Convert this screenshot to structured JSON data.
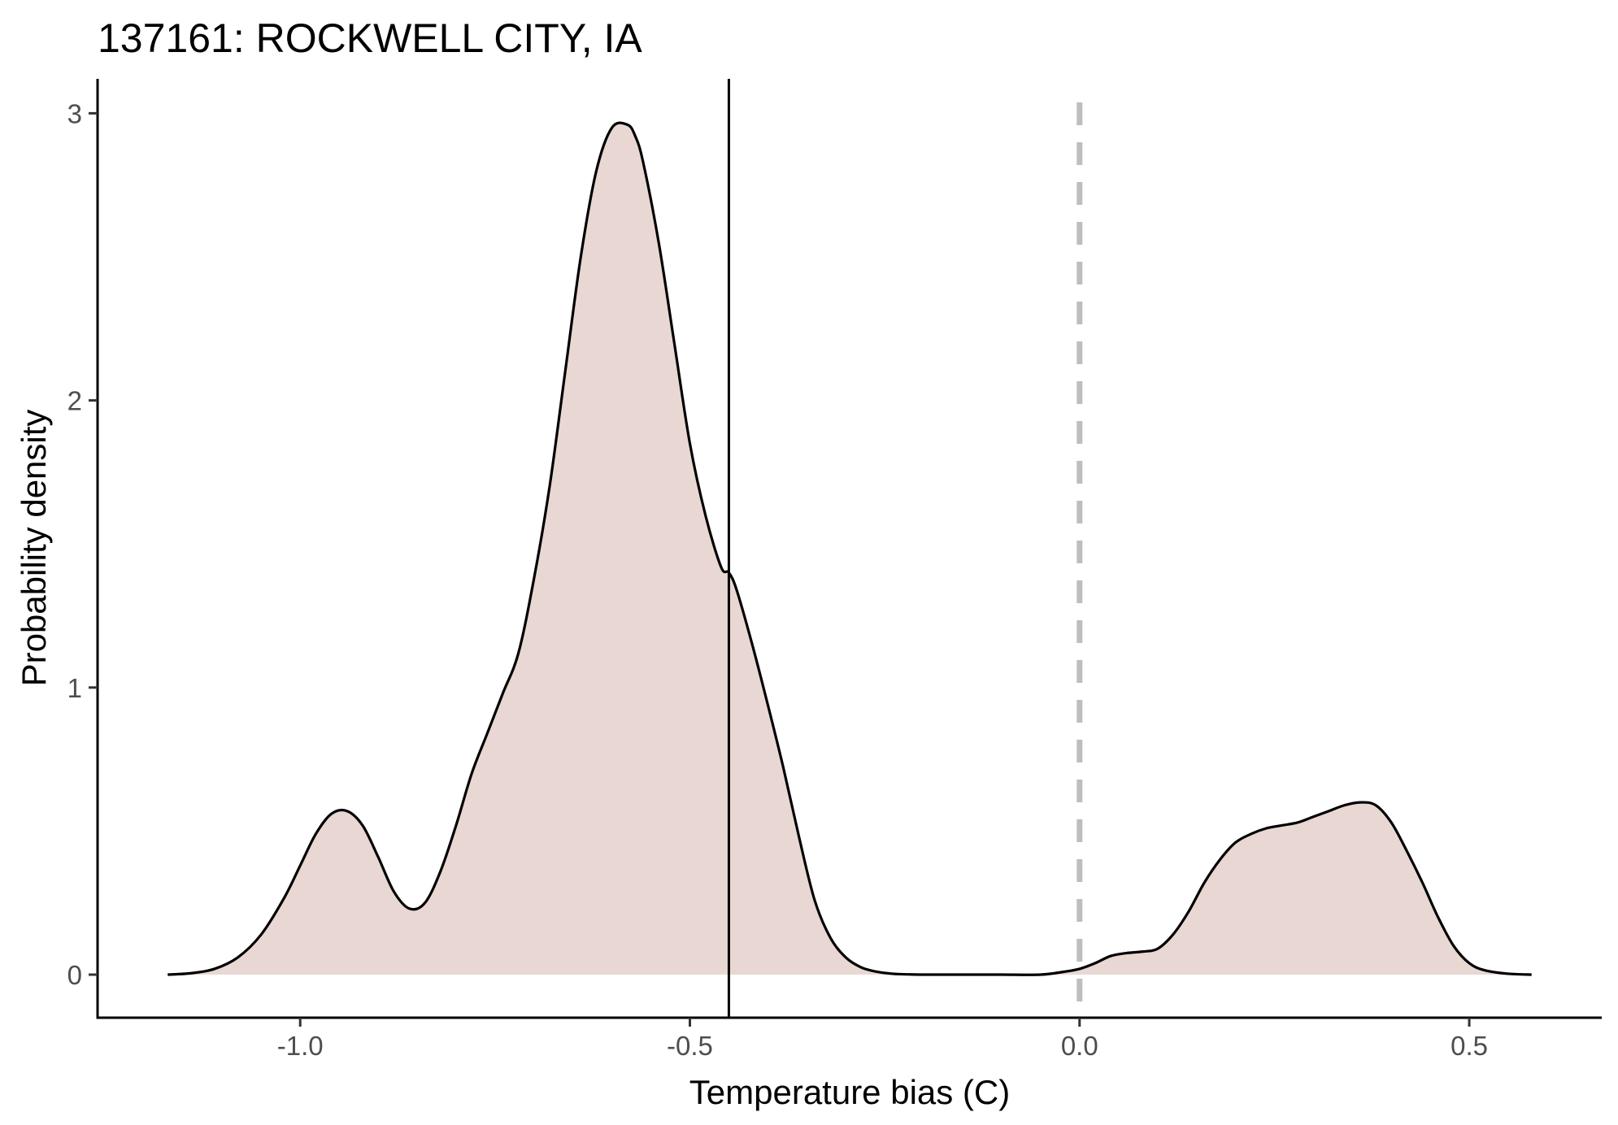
{
  "chart_data": {
    "type": "area",
    "title": "137161: ROCKWELL CITY, IA",
    "xlabel": "Temperature bias (C)",
    "ylabel": "Probability density",
    "xlim": [
      -1.26,
      0.67
    ],
    "ylim": [
      -0.15,
      3.12
    ],
    "x_ticks": [
      -1.0,
      -0.5,
      0.0,
      0.5
    ],
    "x_tick_labels": [
      "-1.0",
      "-0.5",
      "0.0",
      "0.5"
    ],
    "y_ticks": [
      0,
      1,
      2,
      3
    ],
    "y_tick_labels": [
      "0",
      "1",
      "2",
      "3"
    ],
    "grid": false,
    "legend": "none",
    "fill_color": "#e8d7d2",
    "line_color": "#000000",
    "mean_line": {
      "x": -0.45,
      "color": "#000000",
      "style": "solid"
    },
    "reference_line": {
      "x": 0.0,
      "color": "#bebebe",
      "style": "dashed"
    },
    "series": [
      {
        "x": [
          -1.17,
          -1.14,
          -1.11,
          -1.08,
          -1.05,
          -1.02,
          -1.0,
          -0.98,
          -0.96,
          -0.94,
          -0.92,
          -0.9,
          -0.88,
          -0.86,
          -0.84,
          -0.82,
          -0.8,
          -0.78,
          -0.76,
          -0.74,
          -0.72,
          -0.7,
          -0.68,
          -0.66,
          -0.64,
          -0.62,
          -0.6,
          -0.58,
          -0.57,
          -0.56,
          -0.54,
          -0.52,
          -0.5,
          -0.48,
          -0.46,
          -0.45,
          -0.44,
          -0.42,
          -0.4,
          -0.38,
          -0.36,
          -0.34,
          -0.32,
          -0.3,
          -0.28,
          -0.26,
          -0.24,
          -0.22,
          -0.2,
          -0.15,
          -0.1,
          -0.05,
          -0.02,
          0.0,
          0.02,
          0.04,
          0.06,
          0.08,
          0.1,
          0.12,
          0.14,
          0.16,
          0.18,
          0.2,
          0.22,
          0.24,
          0.26,
          0.28,
          0.3,
          0.32,
          0.34,
          0.36,
          0.38,
          0.4,
          0.42,
          0.44,
          0.46,
          0.48,
          0.5,
          0.52,
          0.55,
          0.58
        ],
        "y": [
          0.0,
          0.005,
          0.02,
          0.06,
          0.14,
          0.27,
          0.38,
          0.49,
          0.56,
          0.57,
          0.52,
          0.41,
          0.29,
          0.23,
          0.25,
          0.36,
          0.52,
          0.7,
          0.84,
          0.98,
          1.12,
          1.38,
          1.7,
          2.1,
          2.5,
          2.8,
          2.95,
          2.96,
          2.92,
          2.83,
          2.55,
          2.2,
          1.85,
          1.6,
          1.42,
          1.4,
          1.34,
          1.15,
          0.94,
          0.72,
          0.48,
          0.26,
          0.13,
          0.06,
          0.025,
          0.01,
          0.003,
          0.001,
          0.0,
          0.0,
          0.0,
          0.0,
          0.01,
          0.02,
          0.04,
          0.065,
          0.075,
          0.08,
          0.09,
          0.14,
          0.22,
          0.32,
          0.4,
          0.46,
          0.49,
          0.51,
          0.52,
          0.53,
          0.55,
          0.57,
          0.59,
          0.6,
          0.59,
          0.53,
          0.43,
          0.32,
          0.2,
          0.1,
          0.04,
          0.015,
          0.003,
          0.0
        ]
      }
    ]
  }
}
